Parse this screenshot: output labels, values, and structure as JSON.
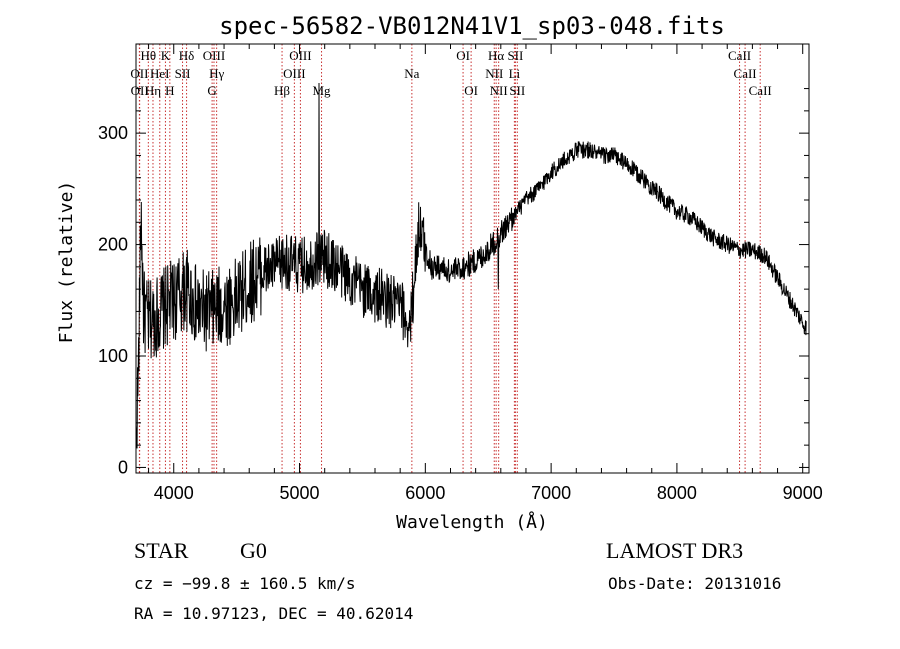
{
  "chart_data": {
    "type": "line",
    "title": "spec-56582-VB012N41V1_sp03-048.fits",
    "xlabel": "Wavelength (Å)",
    "ylabel": "Flux (relative)",
    "xlim": [
      3700,
      9050
    ],
    "ylim": [
      -5,
      380
    ],
    "xticks": [
      4000,
      5000,
      6000,
      7000,
      8000,
      9000
    ],
    "yticks": [
      0,
      100,
      200,
      300
    ],
    "spectrum_anchors": [
      [
        3700,
        20
      ],
      [
        3720,
        90
      ],
      [
        3740,
        230
      ],
      [
        3760,
        140
      ],
      [
        3800,
        130
      ],
      [
        3900,
        140
      ],
      [
        4000,
        150
      ],
      [
        4100,
        160
      ],
      [
        4200,
        140
      ],
      [
        4300,
        140
      ],
      [
        4400,
        145
      ],
      [
        4500,
        150
      ],
      [
        4600,
        165
      ],
      [
        4700,
        175
      ],
      [
        4800,
        180
      ],
      [
        4900,
        185
      ],
      [
        5000,
        180
      ],
      [
        5100,
        185
      ],
      [
        5170,
        190
      ],
      [
        5300,
        180
      ],
      [
        5400,
        170
      ],
      [
        5500,
        160
      ],
      [
        5600,
        155
      ],
      [
        5700,
        150
      ],
      [
        5800,
        145
      ],
      [
        5880,
        125
      ],
      [
        5920,
        180
      ],
      [
        5950,
        220
      ],
      [
        6000,
        195
      ],
      [
        6050,
        180
      ],
      [
        6100,
        180
      ],
      [
        6200,
        175
      ],
      [
        6300,
        180
      ],
      [
        6400,
        185
      ],
      [
        6500,
        195
      ],
      [
        6600,
        210
      ],
      [
        6700,
        225
      ],
      [
        6800,
        240
      ],
      [
        6900,
        250
      ],
      [
        7000,
        265
      ],
      [
        7100,
        275
      ],
      [
        7200,
        285
      ],
      [
        7300,
        285
      ],
      [
        7400,
        280
      ],
      [
        7500,
        280
      ],
      [
        7600,
        272
      ],
      [
        7700,
        262
      ],
      [
        7800,
        252
      ],
      [
        7900,
        240
      ],
      [
        8000,
        230
      ],
      [
        8100,
        225
      ],
      [
        8200,
        215
      ],
      [
        8300,
        205
      ],
      [
        8400,
        200
      ],
      [
        8500,
        195
      ],
      [
        8600,
        195
      ],
      [
        8700,
        190
      ],
      [
        8800,
        170
      ],
      [
        8900,
        150
      ],
      [
        8950,
        140
      ],
      [
        9000,
        130
      ],
      [
        9030,
        125
      ]
    ],
    "spikes": [
      {
        "x": 5155,
        "y": 345
      },
      {
        "x": 6580,
        "y": 160
      }
    ],
    "lines": [
      {
        "label": "Hθ",
        "x": 3798,
        "row": 0
      },
      {
        "label": "OII",
        "x": 3727,
        "row": 1
      },
      {
        "label": "OII",
        "x": 3729,
        "row": 2
      },
      {
        "label": "HeI",
        "x": 3889,
        "row": 1
      },
      {
        "label": "Hη",
        "x": 3835,
        "row": 2
      },
      {
        "label": "K",
        "x": 3934,
        "row": 0
      },
      {
        "label": "H",
        "x": 3969,
        "row": 2
      },
      {
        "label": "SII",
        "x": 4070,
        "row": 1
      },
      {
        "label": "Hδ",
        "x": 4102,
        "row": 0
      },
      {
        "label": "OIII",
        "x": 4320,
        "row": 0
      },
      {
        "label": "Hγ",
        "x": 4341,
        "row": 1
      },
      {
        "label": "G",
        "x": 4305,
        "row": 2
      },
      {
        "label": "Hβ",
        "x": 4861,
        "row": 2
      },
      {
        "label": "OIII",
        "x": 5007,
        "row": 0
      },
      {
        "label": "OIII",
        "x": 4959,
        "row": 1
      },
      {
        "label": "Mg",
        "x": 5175,
        "row": 2
      },
      {
        "label": "Na",
        "x": 5893,
        "row": 1
      },
      {
        "label": "OI",
        "x": 6300,
        "row": 0
      },
      {
        "label": "OI",
        "x": 6364,
        "row": 2
      },
      {
        "label": "Hα",
        "x": 6563,
        "row": 0
      },
      {
        "label": "NII",
        "x": 6548,
        "row": 1
      },
      {
        "label": "NII",
        "x": 6583,
        "row": 2
      },
      {
        "label": "SII",
        "x": 6716,
        "row": 0
      },
      {
        "label": "Li",
        "x": 6708,
        "row": 1
      },
      {
        "label": "SII",
        "x": 6731,
        "row": 2
      },
      {
        "label": "CaII",
        "x": 8498,
        "row": 0
      },
      {
        "label": "CaII",
        "x": 8542,
        "row": 1
      },
      {
        "label": "CaII",
        "x": 8662,
        "row": 2
      }
    ]
  },
  "info": {
    "class": "STAR",
    "subclass": "G0",
    "survey": "LAMOST DR3",
    "cz": "cz = −99.8 ± 160.5 km/s",
    "obs_date": "Obs-Date: 20131016",
    "coords": "RA =  10.97123, DEC =  40.62014"
  },
  "colors": {
    "line_marker": "#c83232",
    "spectrum": "#000000"
  }
}
